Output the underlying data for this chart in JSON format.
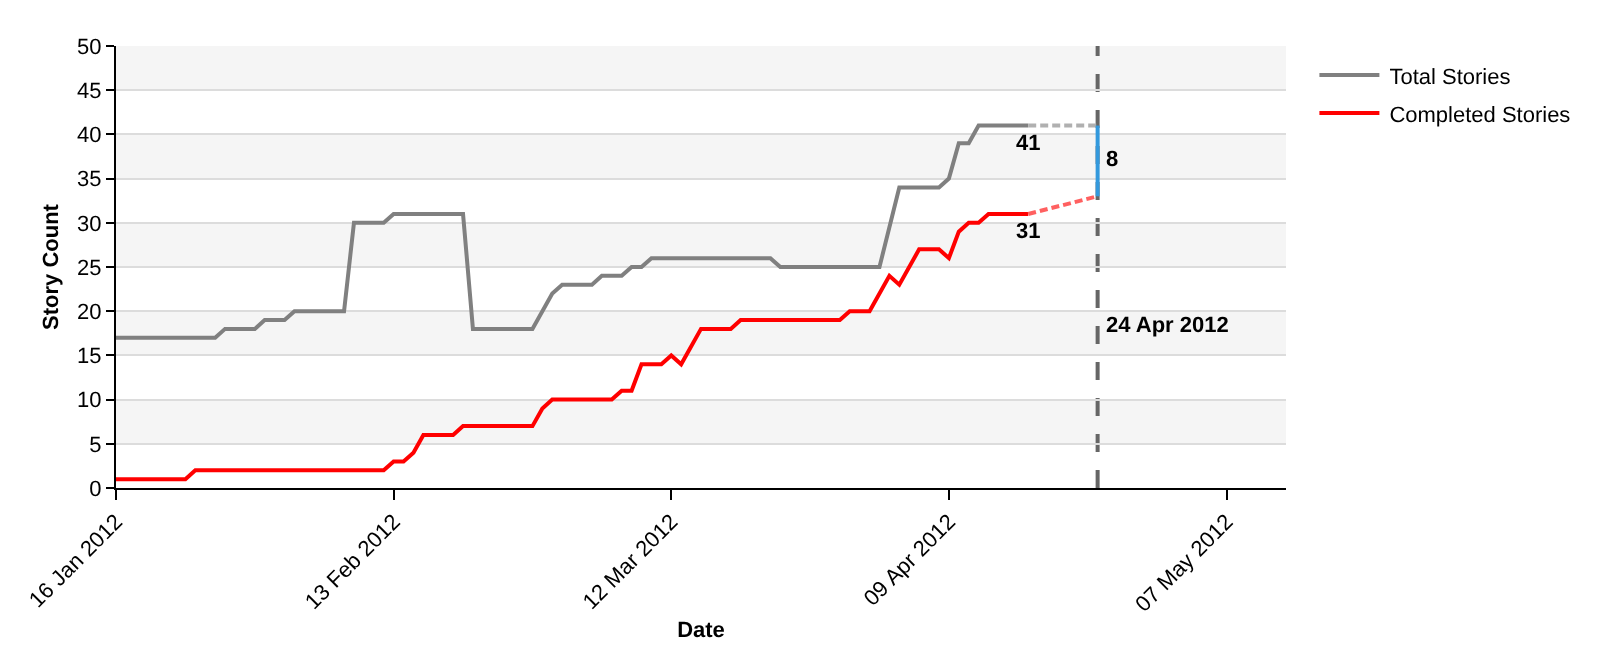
{
  "chart_data": {
    "type": "line",
    "xlabel": "Date",
    "ylabel": "Story Count",
    "xlim": [
      "2012-01-16",
      "2012-05-13"
    ],
    "xticks": [
      {
        "value": "2012-01-16",
        "label": "16 Jan 2012"
      },
      {
        "value": "2012-02-13",
        "label": "13 Feb 2012"
      },
      {
        "value": "2012-03-12",
        "label": "12 Mar 2012"
      },
      {
        "value": "2012-04-09",
        "label": "09 Apr 2012"
      },
      {
        "value": "2012-05-07",
        "label": "07 May 2012"
      }
    ],
    "ylim": [
      0,
      50
    ],
    "yticks": [
      0,
      5,
      10,
      15,
      20,
      25,
      30,
      35,
      40,
      45,
      50
    ],
    "grid": "y",
    "legend": "top right",
    "marker": "none",
    "series": [
      {
        "name": "Total Stories",
        "color": "#808080",
        "x": [
          "2012-01-16",
          "2012-01-26",
          "2012-01-27",
          "2012-01-30",
          "2012-01-31",
          "2012-02-02",
          "2012-02-03",
          "2012-02-08",
          "2012-02-09",
          "2012-02-12",
          "2012-02-13",
          "2012-02-20",
          "2012-02-21",
          "2012-02-27",
          "2012-02-29",
          "2012-03-01",
          "2012-03-04",
          "2012-03-05",
          "2012-03-07",
          "2012-03-08",
          "2012-03-09",
          "2012-03-10",
          "2012-03-22",
          "2012-03-23",
          "2012-04-02",
          "2012-04-04",
          "2012-04-08",
          "2012-04-09",
          "2012-04-10",
          "2012-04-11",
          "2012-04-12",
          "2012-04-17"
        ],
        "values": [
          17,
          17,
          18,
          18,
          19,
          19,
          20,
          20,
          30,
          30,
          31,
          31,
          18,
          18,
          22,
          23,
          23,
          24,
          24,
          25,
          25,
          26,
          26,
          25,
          25,
          34,
          34,
          35,
          39,
          39,
          41,
          41
        ]
      },
      {
        "name": "Completed Stories",
        "color": "#ff0000",
        "x": [
          "2012-01-16",
          "2012-01-23",
          "2012-01-24",
          "2012-02-12",
          "2012-02-13",
          "2012-02-14",
          "2012-02-15",
          "2012-02-16",
          "2012-02-19",
          "2012-02-20",
          "2012-02-27",
          "2012-02-28",
          "2012-02-29",
          "2012-03-06",
          "2012-03-07",
          "2012-03-08",
          "2012-03-09",
          "2012-03-11",
          "2012-03-12",
          "2012-03-13",
          "2012-03-15",
          "2012-03-18",
          "2012-03-19",
          "2012-03-29",
          "2012-03-30",
          "2012-04-01",
          "2012-04-03",
          "2012-04-04",
          "2012-04-06",
          "2012-04-08",
          "2012-04-09",
          "2012-04-10",
          "2012-04-11",
          "2012-04-12",
          "2012-04-13",
          "2012-04-17"
        ],
        "values": [
          1,
          1,
          2,
          2,
          3,
          3,
          4,
          6,
          6,
          7,
          7,
          9,
          10,
          10,
          11,
          11,
          14,
          14,
          15,
          14,
          18,
          18,
          19,
          19,
          20,
          20,
          24,
          23,
          27,
          27,
          26,
          29,
          30,
          30,
          31,
          31
        ]
      },
      {
        "color": "#b0b0b0",
        "line_style": "dashed",
        "x": [
          "2012-04-17",
          "2012-04-24"
        ],
        "values": [
          41,
          41
        ]
      },
      {
        "color": "#ff6060",
        "line_style": "dashed",
        "x": [
          "2012-04-17",
          "2012-04-24"
        ],
        "values": [
          31,
          33
        ]
      },
      {
        "color": "#3399dd",
        "x": [
          "2012-04-24",
          "2012-04-24"
        ],
        "values": [
          33,
          41
        ]
      }
    ],
    "ref_lines": [
      {
        "axis": "x",
        "value": "2012-04-24",
        "label": "24 Apr 2012",
        "color": "#666666",
        "line_style": "dashed"
      }
    ],
    "bands": [
      {
        "axis": "y",
        "from": 5,
        "to": 10,
        "color": "#f5f5f5"
      },
      {
        "axis": "y",
        "from": 15,
        "to": 20,
        "color": "#f5f5f5"
      },
      {
        "axis": "y",
        "from": 25,
        "to": 30,
        "color": "#f5f5f5"
      },
      {
        "axis": "y",
        "from": 35,
        "to": 40,
        "color": "#f5f5f5"
      },
      {
        "axis": "y",
        "from": 45,
        "to": 50,
        "color": "#f5f5f5"
      }
    ],
    "annotations": [
      {
        "text": "41",
        "x": "2012-04-17",
        "y": 41
      },
      {
        "text": "31",
        "x": "2012-04-17",
        "y": 31
      },
      {
        "text": "8",
        "x": "2012-04-24",
        "y": 37
      }
    ]
  }
}
